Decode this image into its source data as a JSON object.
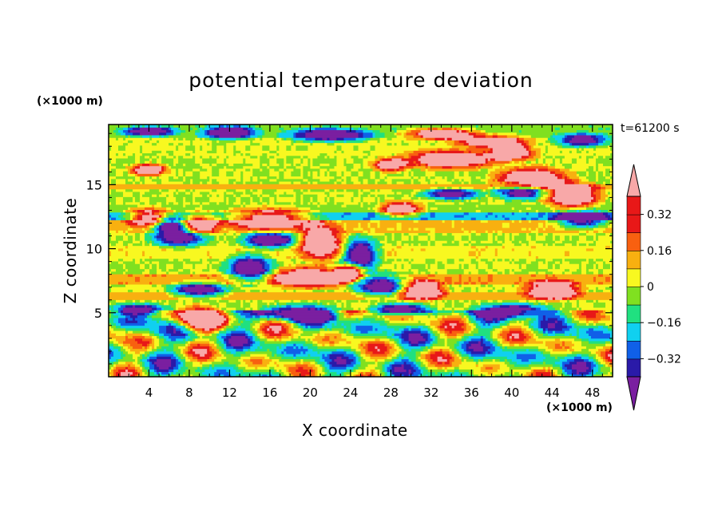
{
  "chart_data": {
    "type": "heatmap",
    "title": "potential temperature deviation",
    "xlabel": "X coordinate",
    "ylabel": "Z coordinate",
    "x_unit": "(×1000 m)",
    "y_unit": "(×1000 m)",
    "time_label": "t=61200 s",
    "xlim": [
      0,
      50
    ],
    "ylim": [
      0,
      19.7
    ],
    "x_ticks": [
      4,
      8,
      12,
      16,
      20,
      24,
      28,
      32,
      36,
      40,
      44,
      48
    ],
    "y_ticks": [
      5,
      10,
      15
    ],
    "colorbar": {
      "levels": [
        -0.4,
        -0.32,
        -0.24,
        -0.16,
        -0.08,
        0,
        0.08,
        0.16,
        0.24,
        0.32,
        0.4
      ],
      "labels": [
        "0.32",
        "0.16",
        "0",
        "−0.16",
        "−0.32"
      ],
      "label_values": [
        0.32,
        0.16,
        0,
        -0.16,
        -0.32
      ],
      "colors": [
        "#7a1fa0",
        "#2a1aa8",
        "#1060e8",
        "#10d0f0",
        "#20e080",
        "#80e020",
        "#f8f820",
        "#f8b010",
        "#f86010",
        "#e81818",
        "#f8a8a8"
      ],
      "extend": "both"
    },
    "field_description_layers": [
      {
        "z_range": [
          0,
          4.5
        ],
        "pattern": "turbulent convective eddies, mixed values"
      },
      {
        "z_range": [
          4.5,
          12.5
        ],
        "pattern": "alternating bands with blobs of high (pink) and low (purple) values"
      },
      {
        "z_range": [
          12.5,
          19.7
        ],
        "pattern": "layered bands, large pink and purple blobs near top"
      }
    ]
  }
}
